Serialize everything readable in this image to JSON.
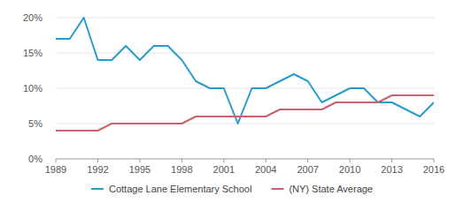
{
  "chart_data": {
    "type": "line",
    "series": [
      {
        "name": "Cottage Lane Elementary School",
        "color": "#2a9ccb",
        "x": [
          1989,
          1990,
          1991,
          1992,
          1993,
          1994,
          1995,
          1996,
          1997,
          1998,
          1999,
          2000,
          2001,
          2002,
          2003,
          2004,
          2005,
          2006,
          2007,
          2008,
          2009,
          2010,
          2011,
          2012,
          2013,
          2015,
          2016
        ],
        "values": [
          17,
          17,
          20,
          14,
          14,
          16,
          14,
          16,
          16,
          14,
          11,
          10,
          10,
          5,
          10,
          10,
          11,
          12,
          11,
          8,
          9,
          10,
          10,
          8,
          8,
          6,
          8
        ]
      },
      {
        "name": "(NY) State Average",
        "color": "#c8636b",
        "x": [
          1989,
          1990,
          1991,
          1992,
          1993,
          1994,
          1995,
          1996,
          1997,
          1998,
          1999,
          2000,
          2001,
          2002,
          2003,
          2004,
          2005,
          2006,
          2007,
          2008,
          2009,
          2010,
          2011,
          2012,
          2013,
          2014,
          2015,
          2016
        ],
        "values": [
          4,
          4,
          4,
          4,
          5,
          5,
          5,
          5,
          5,
          5,
          6,
          6,
          6,
          6,
          6,
          6,
          7,
          7,
          7,
          7,
          8,
          8,
          8,
          8,
          9,
          9,
          9,
          9
        ]
      }
    ],
    "xlim": [
      1989,
      2016
    ],
    "xticks": [
      1989,
      1992,
      1995,
      1998,
      2001,
      2004,
      2007,
      2010,
      2013,
      2016
    ],
    "ylim": [
      0,
      20
    ],
    "yticks": [
      {
        "value": 0,
        "label": "0%"
      },
      {
        "value": 5,
        "label": "5%"
      },
      {
        "value": 10,
        "label": "10%"
      },
      {
        "value": 15,
        "label": "15%"
      },
      {
        "value": 20,
        "label": "20%"
      }
    ],
    "grid": true,
    "legend": "bottom"
  }
}
